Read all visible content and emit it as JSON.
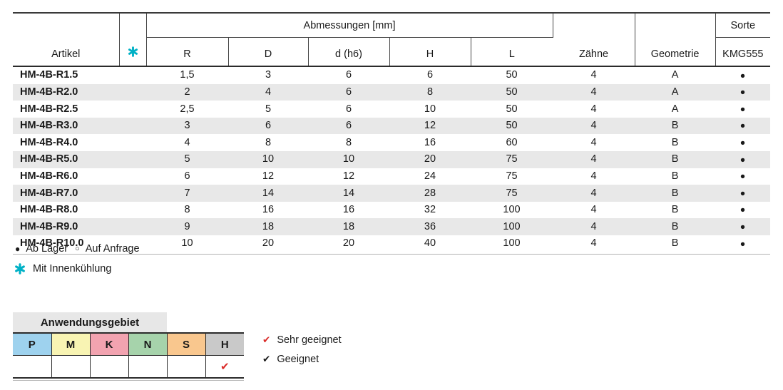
{
  "colors": {
    "cooling_icon": "#00b1c6",
    "check_red": "#da2a27",
    "row_stripe": "#e8e8e8",
    "app_title_bg": "#e7e7e7"
  },
  "main_table": {
    "header": {
      "artikel": "Artikel",
      "dimensions_group": "Abmessungen [mm]",
      "sub_columns": [
        "R",
        "D",
        "d (h6)",
        "H",
        "L"
      ],
      "zaehne": "Zähne",
      "geometrie": "Geometrie",
      "sorte": "Sorte",
      "sorte_sub": "KMG555"
    },
    "rows": [
      {
        "artikel": "HM-4B-R1.5",
        "R": "1,5",
        "D": "3",
        "d_h6": "6",
        "H": "6",
        "L": "50",
        "zaehne": "4",
        "geometrie": "A",
        "sorte": "●"
      },
      {
        "artikel": "HM-4B-R2.0",
        "R": "2",
        "D": "4",
        "d_h6": "6",
        "H": "8",
        "L": "50",
        "zaehne": "4",
        "geometrie": "A",
        "sorte": "●"
      },
      {
        "artikel": "HM-4B-R2.5",
        "R": "2,5",
        "D": "5",
        "d_h6": "6",
        "H": "10",
        "L": "50",
        "zaehne": "4",
        "geometrie": "A",
        "sorte": "●"
      },
      {
        "artikel": "HM-4B-R3.0",
        "R": "3",
        "D": "6",
        "d_h6": "6",
        "H": "12",
        "L": "50",
        "zaehne": "4",
        "geometrie": "B",
        "sorte": "●"
      },
      {
        "artikel": "HM-4B-R4.0",
        "R": "4",
        "D": "8",
        "d_h6": "8",
        "H": "16",
        "L": "60",
        "zaehne": "4",
        "geometrie": "B",
        "sorte": "●"
      },
      {
        "artikel": "HM-4B-R5.0",
        "R": "5",
        "D": "10",
        "d_h6": "10",
        "H": "20",
        "L": "75",
        "zaehne": "4",
        "geometrie": "B",
        "sorte": "●"
      },
      {
        "artikel": "HM-4B-R6.0",
        "R": "6",
        "D": "12",
        "d_h6": "12",
        "H": "24",
        "L": "75",
        "zaehne": "4",
        "geometrie": "B",
        "sorte": "●"
      },
      {
        "artikel": "HM-4B-R7.0",
        "R": "7",
        "D": "14",
        "d_h6": "14",
        "H": "28",
        "L": "75",
        "zaehne": "4",
        "geometrie": "B",
        "sorte": "●"
      },
      {
        "artikel": "HM-4B-R8.0",
        "R": "8",
        "D": "16",
        "d_h6": "16",
        "H": "32",
        "L": "100",
        "zaehne": "4",
        "geometrie": "B",
        "sorte": "●"
      },
      {
        "artikel": "HM-4B-R9.0",
        "R": "9",
        "D": "18",
        "d_h6": "18",
        "H": "36",
        "L": "100",
        "zaehne": "4",
        "geometrie": "B",
        "sorte": "●"
      },
      {
        "artikel": "HM-4B-R10.0",
        "R": "10",
        "D": "20",
        "d_h6": "20",
        "H": "40",
        "L": "100",
        "zaehne": "4",
        "geometrie": "B",
        "sorte": "●"
      }
    ]
  },
  "availability_legend": {
    "filled_symbol": "●",
    "in_stock": "Ab Lager",
    "hollow_symbol": "○",
    "on_request": "Auf Anfrage"
  },
  "cooling_legend": {
    "label": "Mit Innenkühlung"
  },
  "application_table": {
    "title": "Anwendungsgebiet",
    "columns": [
      {
        "label": "P",
        "color": "#9ed2ee"
      },
      {
        "label": "M",
        "color": "#f8f4b3"
      },
      {
        "label": "K",
        "color": "#f2a3b0"
      },
      {
        "label": "N",
        "color": "#a6d3ab"
      },
      {
        "label": "S",
        "color": "#f9c78e"
      },
      {
        "label": "H",
        "color": "#c9c9c9"
      }
    ],
    "row_values": [
      "",
      "",
      "",
      "",
      "",
      "✔"
    ]
  },
  "suitability_legend": [
    {
      "mark": "✔",
      "color": "#da2a27",
      "label": "Sehr geeignet"
    },
    {
      "mark": "✔",
      "color": "#1a1a1a",
      "label": "Geeignet"
    }
  ]
}
